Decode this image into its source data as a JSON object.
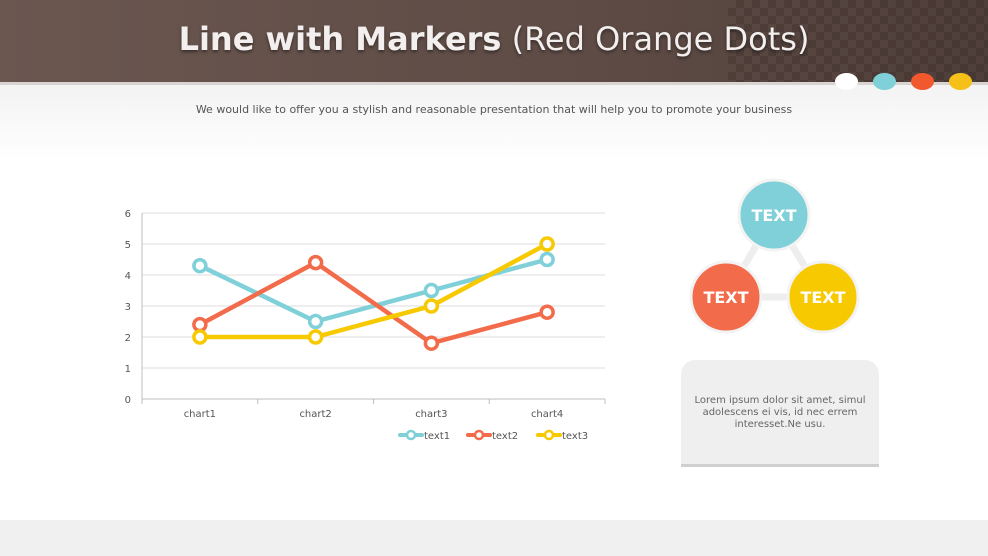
{
  "header": {
    "title_bold": "Line with Markers",
    "title_light": "(Red Orange Dots)",
    "subtitle": "We would like to offer you a stylish and reasonable presentation that will help you to promote your business",
    "dots": [
      "#ffffff",
      "#7fd0d8",
      "#f1582d",
      "#f5c118"
    ]
  },
  "chart_data": {
    "type": "line",
    "categories": [
      "chart1",
      "chart2",
      "chart3",
      "chart4"
    ],
    "series": [
      {
        "name": "text1",
        "values": [
          4.3,
          2.5,
          3.5,
          4.5
        ],
        "color": "#7fd0d8"
      },
      {
        "name": "text2",
        "values": [
          2.4,
          4.4,
          1.8,
          2.8
        ],
        "color": "#f26b4a"
      },
      {
        "name": "text3",
        "values": [
          2.0,
          2.0,
          3.0,
          5.0
        ],
        "color": "#f7c900"
      }
    ],
    "ylim": [
      0,
      6
    ],
    "yticks": [
      0,
      1,
      2,
      3,
      4,
      5,
      6
    ],
    "grid": true,
    "legend": "bottom-right",
    "markers": "circle"
  },
  "cycle": {
    "top": {
      "label": "TEXT",
      "color": "#7fd0d8"
    },
    "left": {
      "label": "TEXT",
      "color": "#f26b4a"
    },
    "right": {
      "label": "TEXT",
      "color": "#f7c900"
    }
  },
  "note": {
    "text": "Lorem ipsum dolor sit amet, simul adolescens ei vis, id nec errem interesset.Ne usu."
  }
}
